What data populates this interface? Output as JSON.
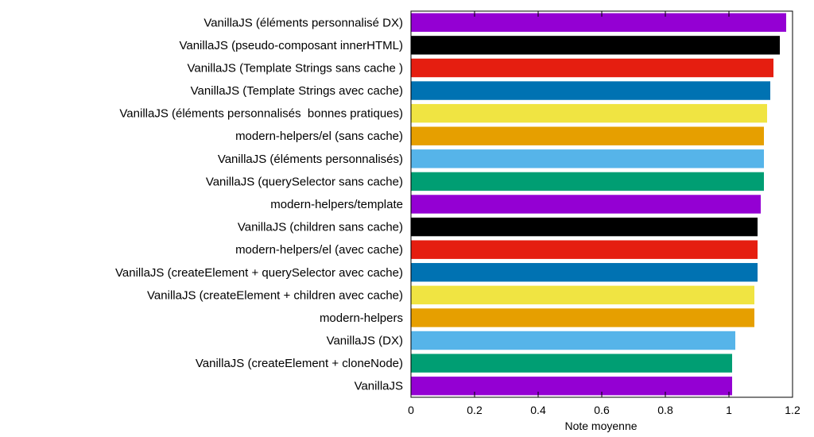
{
  "chart_data": {
    "type": "bar",
    "orientation": "horizontal",
    "title": "",
    "xlabel": "Note moyenne",
    "ylabel": "",
    "xlim": [
      0,
      1.2
    ],
    "x_ticks": [
      0,
      0.2,
      0.4,
      0.6,
      0.8,
      1,
      1.2
    ],
    "x_tick_labels": [
      "0",
      "0.2",
      "0.4",
      "0.6",
      "0.8",
      "1",
      "1.2"
    ],
    "grid": false,
    "legend": "none",
    "categories": [
      "VanillaJS (éléments personnalisé DX)",
      "VanillaJS (pseudo-composant innerHTML)",
      "VanillaJS (Template Strings sans cache )",
      "VanillaJS (Template Strings avec cache)",
      "VanillaJS (éléments personnalisés  bonnes pratiques)",
      "modern-helpers/el (sans cache)",
      "VanillaJS (éléments personnalisés)",
      "VanillaJS (querySelector sans cache)",
      "modern-helpers/template",
      "VanillaJS (children sans cache)",
      "modern-helpers/el (avec cache)",
      "VanillaJS (createElement + querySelector avec cache)",
      "VanillaJS (createElement + children avec cache)",
      "modern-helpers",
      "VanillaJS (DX)",
      "VanillaJS (createElement + cloneNode)",
      "VanillaJS"
    ],
    "values": [
      1.18,
      1.16,
      1.14,
      1.13,
      1.12,
      1.11,
      1.11,
      1.11,
      1.1,
      1.09,
      1.09,
      1.09,
      1.08,
      1.08,
      1.02,
      1.01,
      1.01
    ],
    "colors": [
      "#9400d3",
      "#000000",
      "#e51e10",
      "#0072b2",
      "#f0e442",
      "#e69f00",
      "#56b4e9",
      "#009e73",
      "#9400d3",
      "#000000",
      "#e51e10",
      "#0072b2",
      "#f0e442",
      "#e69f00",
      "#56b4e9",
      "#009e73",
      "#9400d3"
    ]
  }
}
